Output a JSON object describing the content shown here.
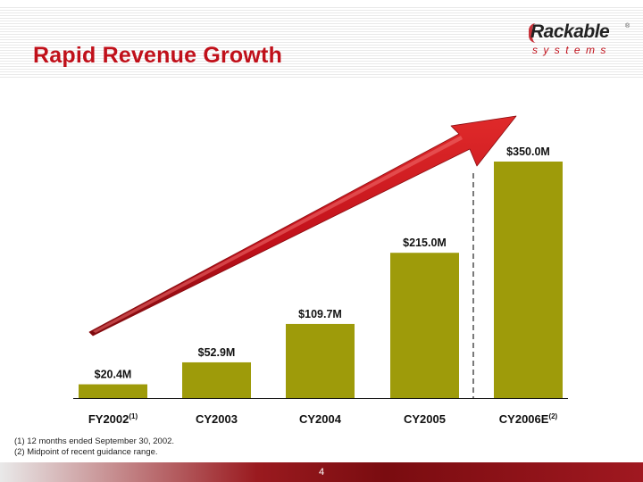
{
  "title": "Rapid Revenue Growth",
  "logo": {
    "name": "Rackable",
    "subtitle": "systems"
  },
  "chart_data": {
    "type": "bar",
    "title": "",
    "xlabel": "",
    "ylabel": "",
    "categories": [
      "FY2002",
      "CY2003",
      "CY2004",
      "CY2005",
      "CY2006E"
    ],
    "category_superscripts": [
      "(1)",
      "",
      "",
      "",
      "(2)"
    ],
    "values": [
      20.4,
      52.9,
      109.7,
      215.0,
      350.0
    ],
    "data_labels": [
      "$20.4M",
      "$52.9M",
      "$109.7M",
      "$215.0M",
      "$350.0M"
    ],
    "unit": "$M",
    "ylim": [
      0,
      350
    ],
    "grid": false,
    "legend": "none",
    "bar_color": "#9e9b0a",
    "arrow_color": "#c0101a",
    "estimate_divider": "dashed line between CY2005 and CY2006E"
  },
  "footnotes": [
    "(1) 12 months ended September 30, 2002.",
    "(2) Midpoint of recent guidance range."
  ],
  "page_number": "4",
  "colors": {
    "title": "#c0101a",
    "bars": "#9e9b0a",
    "arrow": "#c0101a",
    "footer": "#8b1218"
  }
}
